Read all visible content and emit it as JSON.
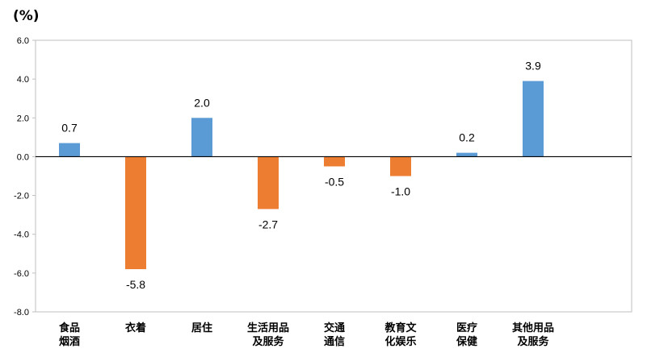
{
  "chart_data": {
    "type": "bar",
    "unit_label": "(%)",
    "categories": [
      [
        "食品",
        "烟酒"
      ],
      [
        "衣着"
      ],
      [
        "居住"
      ],
      [
        "生活用品",
        "及服务"
      ],
      [
        "交通",
        "通信"
      ],
      [
        "教育文",
        "化娱乐"
      ],
      [
        "医疗",
        "保健"
      ],
      [
        "其他用品",
        "及服务"
      ]
    ],
    "values": [
      0.7,
      -5.8,
      2.0,
      -2.7,
      -0.5,
      -1.0,
      0.2,
      3.9
    ],
    "value_labels": [
      "0.7",
      "-5.8",
      "2.0",
      "-2.7",
      "-0.5",
      "-1.0",
      "0.2",
      "3.9"
    ],
    "ylim": [
      -8.0,
      6.0
    ],
    "yticks": [
      6.0,
      4.0,
      2.0,
      0.0,
      -2.0,
      -4.0,
      -6.0,
      -8.0
    ],
    "ytick_labels": [
      "6.0",
      "4.0",
      "2.0",
      "0.0",
      "-2.0",
      "-4.0",
      "-6.0",
      "-8.0"
    ],
    "colors": {
      "positive": "#5B9BD5",
      "negative": "#ED7D31",
      "axis": "#000000",
      "frame": "#BFBFBF"
    },
    "grid": false,
    "legend": "none"
  }
}
